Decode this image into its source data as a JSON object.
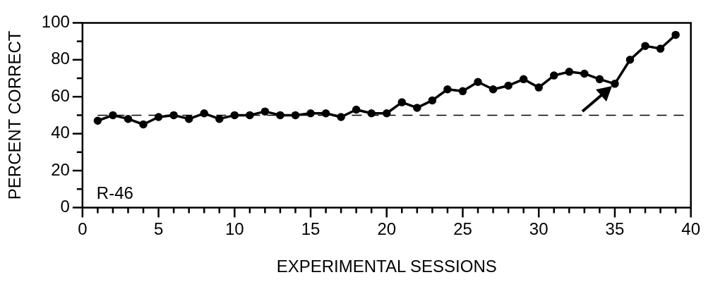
{
  "chart_data": {
    "type": "line",
    "xlabel": "EXPERIMENTAL SESSIONS",
    "ylabel": "PERCENT CORRECT",
    "x": [
      1,
      2,
      3,
      4,
      5,
      6,
      7,
      8,
      9,
      10,
      11,
      12,
      13,
      14,
      15,
      16,
      17,
      18,
      19,
      20,
      21,
      22,
      23,
      24,
      25,
      26,
      27,
      28,
      29,
      30,
      31,
      32,
      33,
      34,
      35,
      36,
      37,
      38,
      39
    ],
    "series": [
      {
        "color": "#000000",
        "values": [
          47,
          50,
          48,
          45,
          49,
          50,
          48,
          51,
          48,
          50,
          50,
          52,
          50,
          50,
          51,
          51,
          49,
          53,
          51,
          51,
          57,
          54,
          58,
          64,
          63,
          68,
          64,
          66,
          69.5,
          65,
          71.5,
          73.5,
          72.5,
          69.5,
          67,
          80,
          87.5,
          86,
          93.5
        ]
      }
    ],
    "xlim": [
      0,
      40
    ],
    "ylim": [
      0,
      100
    ],
    "xticks": [
      0,
      {
        "value": 1,
        "label": null
      },
      {
        "value": 2,
        "label": null
      },
      {
        "value": 3,
        "label": null
      },
      {
        "value": 4,
        "label": null
      },
      5,
      {
        "value": 6,
        "label": null
      },
      {
        "value": 7,
        "label": null
      },
      {
        "value": 8,
        "label": null
      },
      {
        "value": 9,
        "label": null
      },
      10,
      {
        "value": 11,
        "label": null
      },
      {
        "value": 12,
        "label": null
      },
      {
        "value": 13,
        "label": null
      },
      {
        "value": 14,
        "label": null
      },
      15,
      {
        "value": 16,
        "label": null
      },
      {
        "value": 17,
        "label": null
      },
      {
        "value": 18,
        "label": null
      },
      {
        "value": 19,
        "label": null
      },
      20,
      {
        "value": 21,
        "label": null
      },
      {
        "value": 22,
        "label": null
      },
      {
        "value": 23,
        "label": null
      },
      {
        "value": 24,
        "label": null
      },
      25,
      {
        "value": 26,
        "label": null
      },
      {
        "value": 27,
        "label": null
      },
      {
        "value": 28,
        "label": null
      },
      {
        "value": 29,
        "label": null
      },
      30,
      {
        "value": 31,
        "label": null
      },
      {
        "value": 32,
        "label": null
      },
      {
        "value": 33,
        "label": null
      },
      {
        "value": 34,
        "label": null
      },
      35,
      {
        "value": 36,
        "label": null
      },
      {
        "value": 37,
        "label": null
      },
      {
        "value": 38,
        "label": null
      },
      {
        "value": 39,
        "label": null
      },
      40
    ],
    "yticks": [
      0,
      {
        "value": 10,
        "label": null
      },
      20,
      {
        "value": 30,
        "label": null
      },
      40,
      {
        "value": 50,
        "label": null
      },
      60,
      {
        "value": 70,
        "label": null
      },
      80,
      {
        "value": 90,
        "label": null
      },
      100
    ],
    "ref_lines": [
      {
        "axis": "y",
        "value": 50,
        "line_style": "dashed",
        "color": "#000000"
      }
    ],
    "annotations": [
      "R-46"
    ],
    "marker": "circle",
    "line_style": "solid",
    "grid": false,
    "legend": false
  }
}
